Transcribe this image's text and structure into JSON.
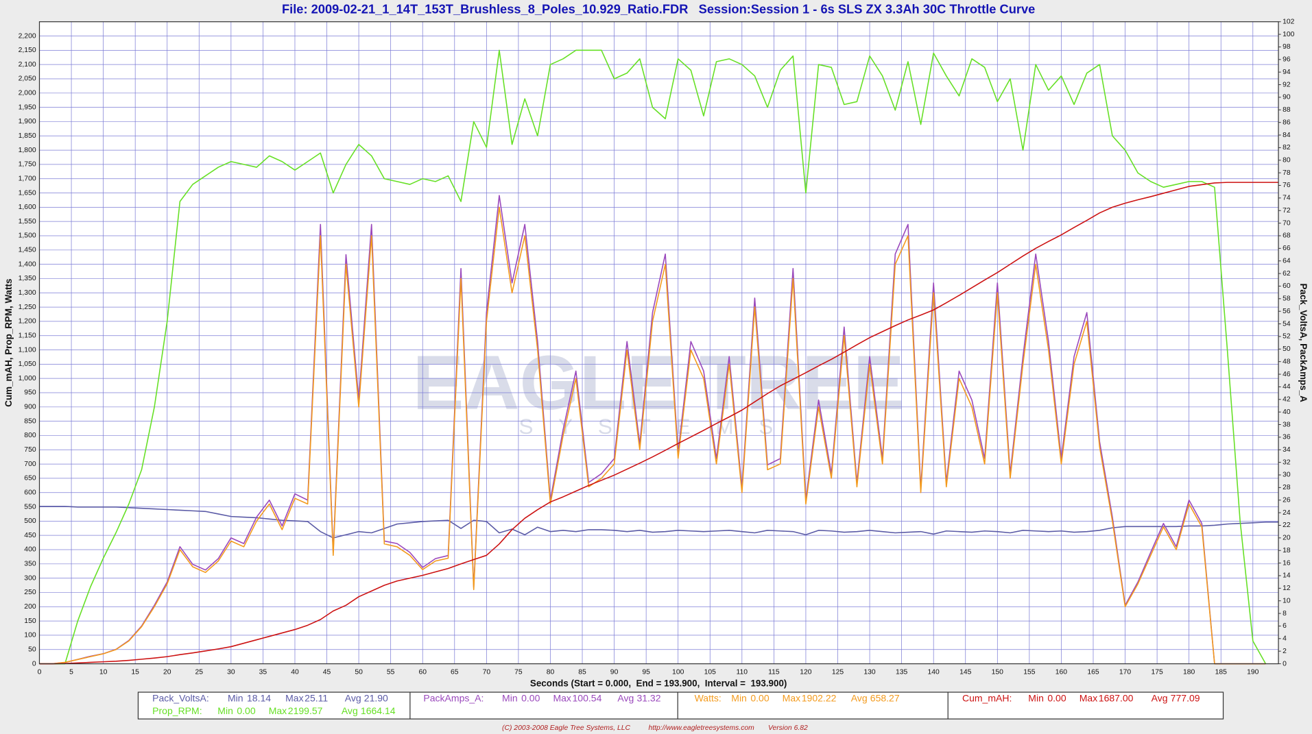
{
  "chart_data": {
    "type": "line",
    "title": "File: 2009-02-21_1_14T_153T_Brushless_8_Poles_10.929_Ratio.FDR   Session:Session 1 - 6s SLS ZX 3.3Ah 30C Throttle Curve",
    "x_label": "Seconds (Start = 0.000,  End = 193.900,  Interval =  193.900)",
    "y_label": "Cum_mAH, Prop_RPM, Watts",
    "y2_label": "Pack_VoltsA, PackAmps_A",
    "watermark": {
      "title": "EAGLE TREE",
      "subtitle": "SYSTEMS"
    },
    "footer": [
      "(C) 2003-2008 Eagle Tree Systems, LLC",
      "http://www.eagletreesystems.com",
      "Version 6.82"
    ],
    "stats_labels": [
      "Min",
      "Max",
      "Avg"
    ],
    "grid": true,
    "xlim": [
      0,
      194
    ],
    "xticks": [
      0,
      5,
      10,
      15,
      20,
      25,
      30,
      35,
      40,
      45,
      50,
      55,
      60,
      65,
      70,
      75,
      80,
      85,
      90,
      95,
      100,
      105,
      110,
      115,
      120,
      125,
      130,
      135,
      140,
      145,
      150,
      155,
      160,
      165,
      170,
      175,
      180,
      185,
      190
    ],
    "ylim": [
      0,
      2250
    ],
    "yticks": [
      0,
      50,
      100,
      150,
      200,
      250,
      300,
      350,
      400,
      450,
      500,
      550,
      600,
      650,
      700,
      750,
      800,
      850,
      900,
      950,
      {
        "value": 1000,
        "label": "1,000"
      },
      {
        "value": 1050,
        "label": "1,050"
      },
      {
        "value": 1100,
        "label": "1,100"
      },
      {
        "value": 1150,
        "label": "1,150"
      },
      {
        "value": 1200,
        "label": "1,200"
      },
      {
        "value": 1250,
        "label": "1,250"
      },
      {
        "value": 1300,
        "label": "1,300"
      },
      {
        "value": 1350,
        "label": "1,350"
      },
      {
        "value": 1400,
        "label": "1,400"
      },
      {
        "value": 1450,
        "label": "1,450"
      },
      {
        "value": 1500,
        "label": "1,500"
      },
      {
        "value": 1550,
        "label": "1,550"
      },
      {
        "value": 1600,
        "label": "1,600"
      },
      {
        "value": 1650,
        "label": "1,650"
      },
      {
        "value": 1700,
        "label": "1,700"
      },
      {
        "value": 1750,
        "label": "1,750"
      },
      {
        "value": 1800,
        "label": "1,800"
      },
      {
        "value": 1850,
        "label": "1,850"
      },
      {
        "value": 1900,
        "label": "1,900"
      },
      {
        "value": 1950,
        "label": "1,950"
      },
      {
        "value": 2000,
        "label": "2,000"
      },
      {
        "value": 2050,
        "label": "2,050"
      },
      {
        "value": 2100,
        "label": "2,100"
      },
      {
        "value": 2150,
        "label": "2,150"
      },
      {
        "value": 2200,
        "label": "2,200"
      }
    ],
    "y2lim": [
      0,
      102
    ],
    "y2ticks": [
      0,
      2,
      4,
      6,
      8,
      10,
      12,
      14,
      16,
      18,
      20,
      22,
      24,
      26,
      28,
      30,
      32,
      34,
      36,
      38,
      40,
      42,
      44,
      46,
      48,
      50,
      52,
      54,
      56,
      58,
      60,
      62,
      64,
      66,
      68,
      70,
      72,
      74,
      76,
      78,
      80,
      82,
      84,
      86,
      88,
      90,
      92,
      94,
      96,
      98,
      100,
      102
    ],
    "x": [
      0,
      2,
      4,
      6,
      8,
      10,
      12,
      14,
      16,
      18,
      20,
      22,
      24,
      26,
      28,
      30,
      32,
      34,
      36,
      38,
      40,
      42,
      44,
      46,
      48,
      50,
      52,
      54,
      56,
      58,
      60,
      62,
      64,
      66,
      68,
      70,
      72,
      74,
      76,
      78,
      80,
      82,
      84,
      86,
      88,
      90,
      92,
      94,
      96,
      98,
      100,
      102,
      104,
      106,
      108,
      110,
      112,
      114,
      116,
      118,
      120,
      122,
      124,
      126,
      128,
      130,
      132,
      134,
      136,
      138,
      140,
      142,
      144,
      146,
      148,
      150,
      152,
      154,
      156,
      158,
      160,
      162,
      164,
      166,
      168,
      170,
      172,
      174,
      176,
      178,
      180,
      182,
      184,
      186,
      188,
      190,
      192,
      194
    ],
    "series": [
      {
        "name": "Pack_VoltsA:",
        "color": "#5a5aa6",
        "axis": "y2",
        "stats": [
          18.14,
          25.11,
          {
            "value": 21.9,
            "label": "21.90"
          }
        ],
        "values": [
          25.0,
          25.0,
          25.0,
          24.9,
          24.9,
          24.9,
          24.9,
          24.8,
          24.7,
          24.6,
          24.5,
          24.4,
          24.3,
          24.2,
          23.8,
          23.4,
          23.3,
          23.2,
          23.0,
          22.8,
          22.7,
          22.6,
          21.0,
          20.0,
          20.5,
          21.0,
          20.8,
          21.5,
          22.2,
          22.4,
          22.6,
          22.7,
          22.8,
          21.5,
          22.8,
          22.6,
          20.8,
          21.4,
          20.5,
          21.7,
          21.0,
          21.2,
          21.0,
          21.3,
          21.3,
          21.2,
          21.0,
          21.2,
          20.9,
          21.0,
          21.2,
          21.1,
          21.0,
          21.1,
          21.2,
          21.0,
          20.8,
          21.2,
          21.1,
          21.0,
          20.5,
          21.2,
          21.1,
          20.9,
          21.0,
          21.2,
          21.0,
          20.8,
          20.9,
          21.0,
          20.6,
          21.1,
          21.0,
          20.9,
          21.1,
          21.0,
          20.8,
          21.2,
          21.1,
          21.0,
          21.1,
          20.9,
          21.0,
          21.2,
          21.6,
          21.8,
          21.8,
          21.8,
          21.8,
          21.8,
          21.9,
          21.9,
          22.0,
          22.2,
          22.3,
          22.4,
          22.5,
          22.5
        ]
      },
      {
        "name": "PackAmps_A:",
        "color": "#9a48bc",
        "axis": "y2",
        "stats": [
          {
            "value": 0,
            "label": "0.00"
          },
          100.54,
          31.32
        ],
        "values": [
          0,
          0,
          0.2,
          0.7,
          1.2,
          1.6,
          2.3,
          3.7,
          6,
          9.3,
          13,
          18.6,
          15.8,
          14.9,
          16.7,
          20,
          19.1,
          23.3,
          26,
          21.9,
          27,
          26,
          69.8,
          17.7,
          65,
          41.9,
          69.8,
          19.5,
          19.1,
          17.7,
          15.3,
          16.7,
          17.2,
          62.8,
          12.1,
          55.8,
          74.4,
          60.5,
          69.8,
          51.2,
          26,
          37.2,
          46.5,
          28.8,
          30.2,
          32.6,
          51.2,
          34.9,
          55.8,
          65.1,
          33.5,
          51.2,
          46.5,
          32.6,
          48.8,
          27.9,
          58.1,
          31.6,
          32.6,
          62.8,
          26,
          41.9,
          30.2,
          53.5,
          28.8,
          48.8,
          32.6,
          65.1,
          69.8,
          27.9,
          60.5,
          28.8,
          46.5,
          41.9,
          32.6,
          60.5,
          30.2,
          48.8,
          65.1,
          51.2,
          32.6,
          48.8,
          55.8,
          35.3,
          23.3,
          9.3,
          13,
          17.7,
          22.3,
          18.6,
          26,
          22.3,
          0,
          0,
          0,
          0,
          0,
          null
        ]
      },
      {
        "name": "Watts:",
        "color": "#f39a1c",
        "axis": "y",
        "stats": [
          {
            "value": 0,
            "label": "0.00"
          },
          1902.22,
          658.27
        ],
        "values": [
          0,
          0,
          5,
          15,
          25,
          35,
          50,
          80,
          130,
          200,
          280,
          400,
          340,
          320,
          360,
          430,
          410,
          500,
          560,
          470,
          580,
          560,
          1500,
          380,
          1400,
          900,
          1500,
          420,
          410,
          380,
          330,
          360,
          370,
          1350,
          260,
          1200,
          1600,
          1300,
          1500,
          1100,
          560,
          800,
          1000,
          620,
          650,
          700,
          1100,
          750,
          1200,
          1400,
          720,
          1100,
          1000,
          700,
          1050,
          600,
          1250,
          680,
          700,
          1350,
          560,
          900,
          650,
          1150,
          620,
          1050,
          700,
          1400,
          1500,
          600,
          1300,
          620,
          1000,
          900,
          700,
          1300,
          650,
          1050,
          1400,
          1100,
          700,
          1050,
          1200,
          760,
          500,
          200,
          280,
          380,
          480,
          400,
          560,
          480,
          0,
          0,
          0,
          0,
          0,
          null
        ]
      },
      {
        "name": "Cum_mAH:",
        "color": "#cc1111",
        "axis": "y",
        "stats": [
          {
            "value": 0,
            "label": "0.00"
          },
          {
            "value": 1687,
            "label": "1687.00"
          },
          777.09
        ],
        "values": [
          0,
          0,
          1,
          3,
          5,
          7,
          9,
          12,
          16,
          20,
          25,
          32,
          38,
          45,
          52,
          60,
          72,
          84,
          96,
          108,
          120,
          135,
          155,
          185,
          205,
          235,
          255,
          275,
          290,
          300,
          310,
          322,
          334,
          350,
          365,
          380,
          420,
          470,
          510,
          540,
          567,
          585,
          605,
          625,
          643,
          661,
          682,
          703,
          725,
          748,
          772,
          795,
          818,
          842,
          865,
          889,
          918,
          947,
          974,
          997,
          1020,
          1044,
          1067,
          1092,
          1118,
          1143,
          1164,
          1185,
          1205,
          1222,
          1240,
          1265,
          1291,
          1318,
          1345,
          1371,
          1400,
          1429,
          1456,
          1480,
          1503,
          1529,
          1554,
          1580,
          1600,
          1614,
          1626,
          1637,
          1649,
          1661,
          1673,
          1679,
          1685,
          1687,
          1687,
          1687,
          1687,
          1687
        ]
      },
      {
        "name": "Prop_RPM:",
        "color": "#66e025",
        "axis": "y",
        "stats": [
          {
            "value": 0,
            "label": "0.00"
          },
          2199.57,
          1664.14
        ],
        "values": [
          0,
          0,
          0,
          150,
          270,
          370,
          460,
          560,
          680,
          900,
          1200,
          1620,
          1680,
          1710,
          1740,
          1760,
          1750,
          1740,
          1780,
          1760,
          1730,
          1760,
          1790,
          1650,
          1750,
          1820,
          1780,
          1700,
          1690,
          1680,
          1700,
          1690,
          1710,
          1620,
          1900,
          1810,
          2150,
          1820,
          1980,
          1850,
          2100,
          2120,
          2150,
          2150,
          2150,
          2050,
          2070,
          2120,
          1950,
          1910,
          2120,
          2080,
          1920,
          2110,
          2120,
          2100,
          2060,
          1950,
          2080,
          2130,
          1650,
          2100,
          2090,
          1960,
          1970,
          2130,
          2060,
          1940,
          2110,
          1890,
          2140,
          2060,
          1990,
          2120,
          2090,
          1970,
          2050,
          1800,
          2100,
          2010,
          2060,
          1960,
          2070,
          2100,
          1850,
          1800,
          1720,
          1690,
          1670,
          1680,
          1690,
          1690,
          1670,
          1100,
          500,
          80,
          0,
          null
        ]
      }
    ]
  }
}
